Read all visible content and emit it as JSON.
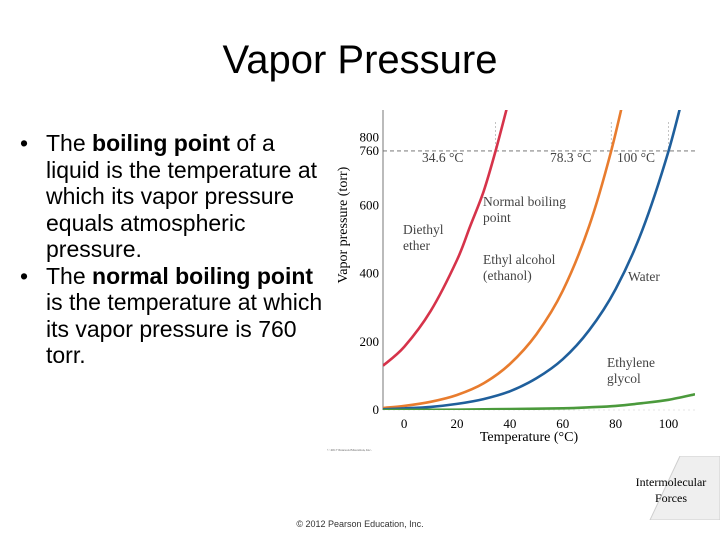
{
  "slide": {
    "title": "Vapor Pressure",
    "footer": "© 2012 Pearson Education, Inc.",
    "corner_line1": "Intermolecular",
    "corner_line2": "Forces"
  },
  "bullets": [
    {
      "pre": "The ",
      "bold": "boiling point",
      "post": " of a liquid is the temperature at which its vapor pressure equals atmospheric pressure."
    },
    {
      "pre": "The ",
      "bold": "normal boiling point",
      "post": " is the temperature at which its vapor pressure is 760 torr."
    }
  ],
  "chart_data": {
    "type": "line",
    "xlabel": "Temperature (°C)",
    "ylabel": "Vapor pressure (torr)",
    "xlim": [
      -8,
      110
    ],
    "ylim": [
      0,
      880
    ],
    "xticks": [
      0,
      20,
      40,
      60,
      80,
      100
    ],
    "yticks": [
      0,
      200,
      400,
      600,
      760,
      800
    ],
    "reference_line": {
      "y": 760,
      "style": "dashed"
    },
    "series": [
      {
        "name": "Diethyl ether",
        "color": "#d6334a",
        "x": [
          -8,
          0,
          10,
          20,
          25,
          30,
          34.6,
          40
        ],
        "y": [
          130,
          185,
          290,
          440,
          540,
          640,
          760,
          920
        ]
      },
      {
        "name": "Ethyl alcohol (ethanol)",
        "color": "#e87c2e",
        "x": [
          -8,
          0,
          10,
          20,
          30,
          40,
          50,
          60,
          70,
          78.3,
          85
        ],
        "y": [
          6,
          12,
          24,
          44,
          78,
          135,
          222,
          350,
          540,
          760,
          980
        ]
      },
      {
        "name": "Water",
        "color": "#1f5f9c",
        "x": [
          -8,
          0,
          10,
          20,
          30,
          40,
          50,
          60,
          70,
          80,
          90,
          100,
          108
        ],
        "y": [
          2,
          4.6,
          9,
          18,
          32,
          55,
          93,
          149,
          234,
          355,
          526,
          760,
          1000
        ]
      },
      {
        "name": "Ethylene glycol",
        "color": "#4b9a3c",
        "x": [
          -8,
          20,
          40,
          60,
          70,
          80,
          90,
          100,
          110
        ],
        "y": [
          0,
          1,
          3,
          5,
          8,
          12,
          20,
          30,
          46
        ]
      }
    ],
    "annotations": [
      {
        "text": "34.6 °C"
      },
      {
        "text": "78.3 °C"
      },
      {
        "text": "100 °C"
      },
      {
        "text": "Normal boiling"
      },
      {
        "text": "point"
      },
      {
        "text": "Diethyl"
      },
      {
        "text": "ether"
      },
      {
        "text": "Ethyl alcohol"
      },
      {
        "text": "(ethanol)"
      },
      {
        "text": "Water"
      },
      {
        "text": "Ethylene"
      },
      {
        "text": "glycol"
      }
    ],
    "credit": "© 2017 Pearson Education, Inc."
  }
}
